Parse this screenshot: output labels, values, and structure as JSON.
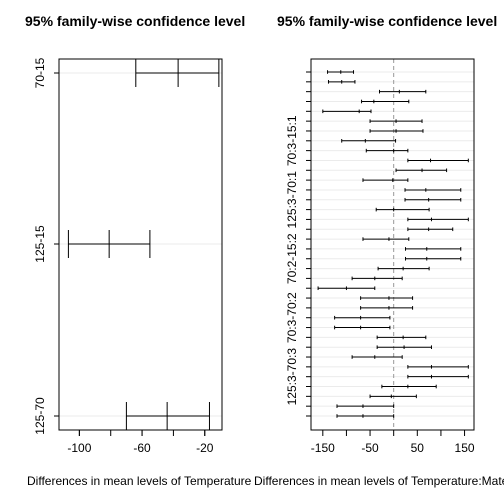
{
  "chart_data": [
    {
      "type": "interval",
      "title": "95% family-wise confidence level",
      "xlabel": "Differences in mean levels of Temperature",
      "xlim": [
        -113,
        -9
      ],
      "xticks": [
        -100,
        -60,
        -20
      ],
      "grid": true,
      "categories": [
        "70-15",
        "125-15",
        "125-70"
      ],
      "intervals": [
        {
          "label": "70-15",
          "lwr": -64,
          "diff": -37,
          "upr": -11
        },
        {
          "label": "125-15",
          "lwr": -107,
          "diff": -81,
          "upr": -55
        },
        {
          "label": "125-70",
          "lwr": -70,
          "diff": -44,
          "upr": -17
        }
      ]
    },
    {
      "type": "interval",
      "title": "95% family-wise confidence level",
      "xlabel": "Differences in mean levels of Temperature:Material",
      "xlim": [
        -175,
        170
      ],
      "xticks": [
        -150,
        -50,
        50,
        150
      ],
      "grid": true,
      "zero_line": true,
      "tick_labels": [
        "70:3-15:1",
        "125:3-70:1",
        "70:2-15:2",
        "70:3-70:2",
        "125:3-70:3"
      ],
      "intervals": [
        {
          "lwr": -140,
          "diff": -112,
          "upr": -85
        },
        {
          "lwr": -138,
          "diff": -110,
          "upr": -82
        },
        {
          "lwr": -30,
          "diff": 12,
          "upr": 68
        },
        {
          "lwr": -68,
          "diff": -42,
          "upr": 32
        },
        {
          "lwr": -150,
          "diff": -73,
          "upr": -48
        },
        {
          "lwr": -50,
          "diff": 5,
          "upr": 60
        },
        {
          "lwr": -50,
          "diff": 5,
          "upr": 62
        },
        {
          "lwr": -110,
          "diff": -60,
          "upr": 4
        },
        {
          "lwr": -58,
          "diff": 0,
          "upr": 30
        },
        {
          "lwr": 30,
          "diff": 78,
          "upr": 158
        },
        {
          "lwr": 5,
          "diff": 60,
          "upr": 112
        },
        {
          "lwr": -65,
          "diff": -2,
          "upr": 30
        },
        {
          "lwr": 24,
          "diff": 68,
          "upr": 142
        },
        {
          "lwr": 24,
          "diff": 74,
          "upr": 142
        },
        {
          "lwr": -37,
          "diff": 0,
          "upr": 75
        },
        {
          "lwr": 30,
          "diff": 80,
          "upr": 158
        },
        {
          "lwr": 30,
          "diff": 74,
          "upr": 125
        },
        {
          "lwr": -65,
          "diff": -10,
          "upr": 32
        },
        {
          "lwr": 25,
          "diff": 70,
          "upr": 142
        },
        {
          "lwr": 25,
          "diff": 70,
          "upr": 142
        },
        {
          "lwr": -33,
          "diff": 20,
          "upr": 75
        },
        {
          "lwr": -88,
          "diff": -40,
          "upr": 18
        },
        {
          "lwr": -160,
          "diff": -100,
          "upr": -40
        },
        {
          "lwr": -70,
          "diff": -10,
          "upr": 40
        },
        {
          "lwr": -70,
          "diff": -10,
          "upr": 40
        },
        {
          "lwr": -125,
          "diff": -70,
          "upr": -8
        },
        {
          "lwr": -125,
          "diff": -70,
          "upr": -8
        },
        {
          "lwr": -35,
          "diff": 20,
          "upr": 68
        },
        {
          "lwr": -35,
          "diff": 22,
          "upr": 80
        },
        {
          "lwr": -88,
          "diff": -40,
          "upr": 18
        },
        {
          "lwr": 30,
          "diff": 80,
          "upr": 158
        },
        {
          "lwr": 30,
          "diff": 80,
          "upr": 158
        },
        {
          "lwr": -25,
          "diff": 30,
          "upr": 90
        },
        {
          "lwr": -50,
          "diff": -5,
          "upr": 48
        },
        {
          "lwr": -120,
          "diff": -65,
          "upr": 0
        },
        {
          "lwr": -120,
          "diff": -65,
          "upr": 0
        }
      ]
    }
  ]
}
